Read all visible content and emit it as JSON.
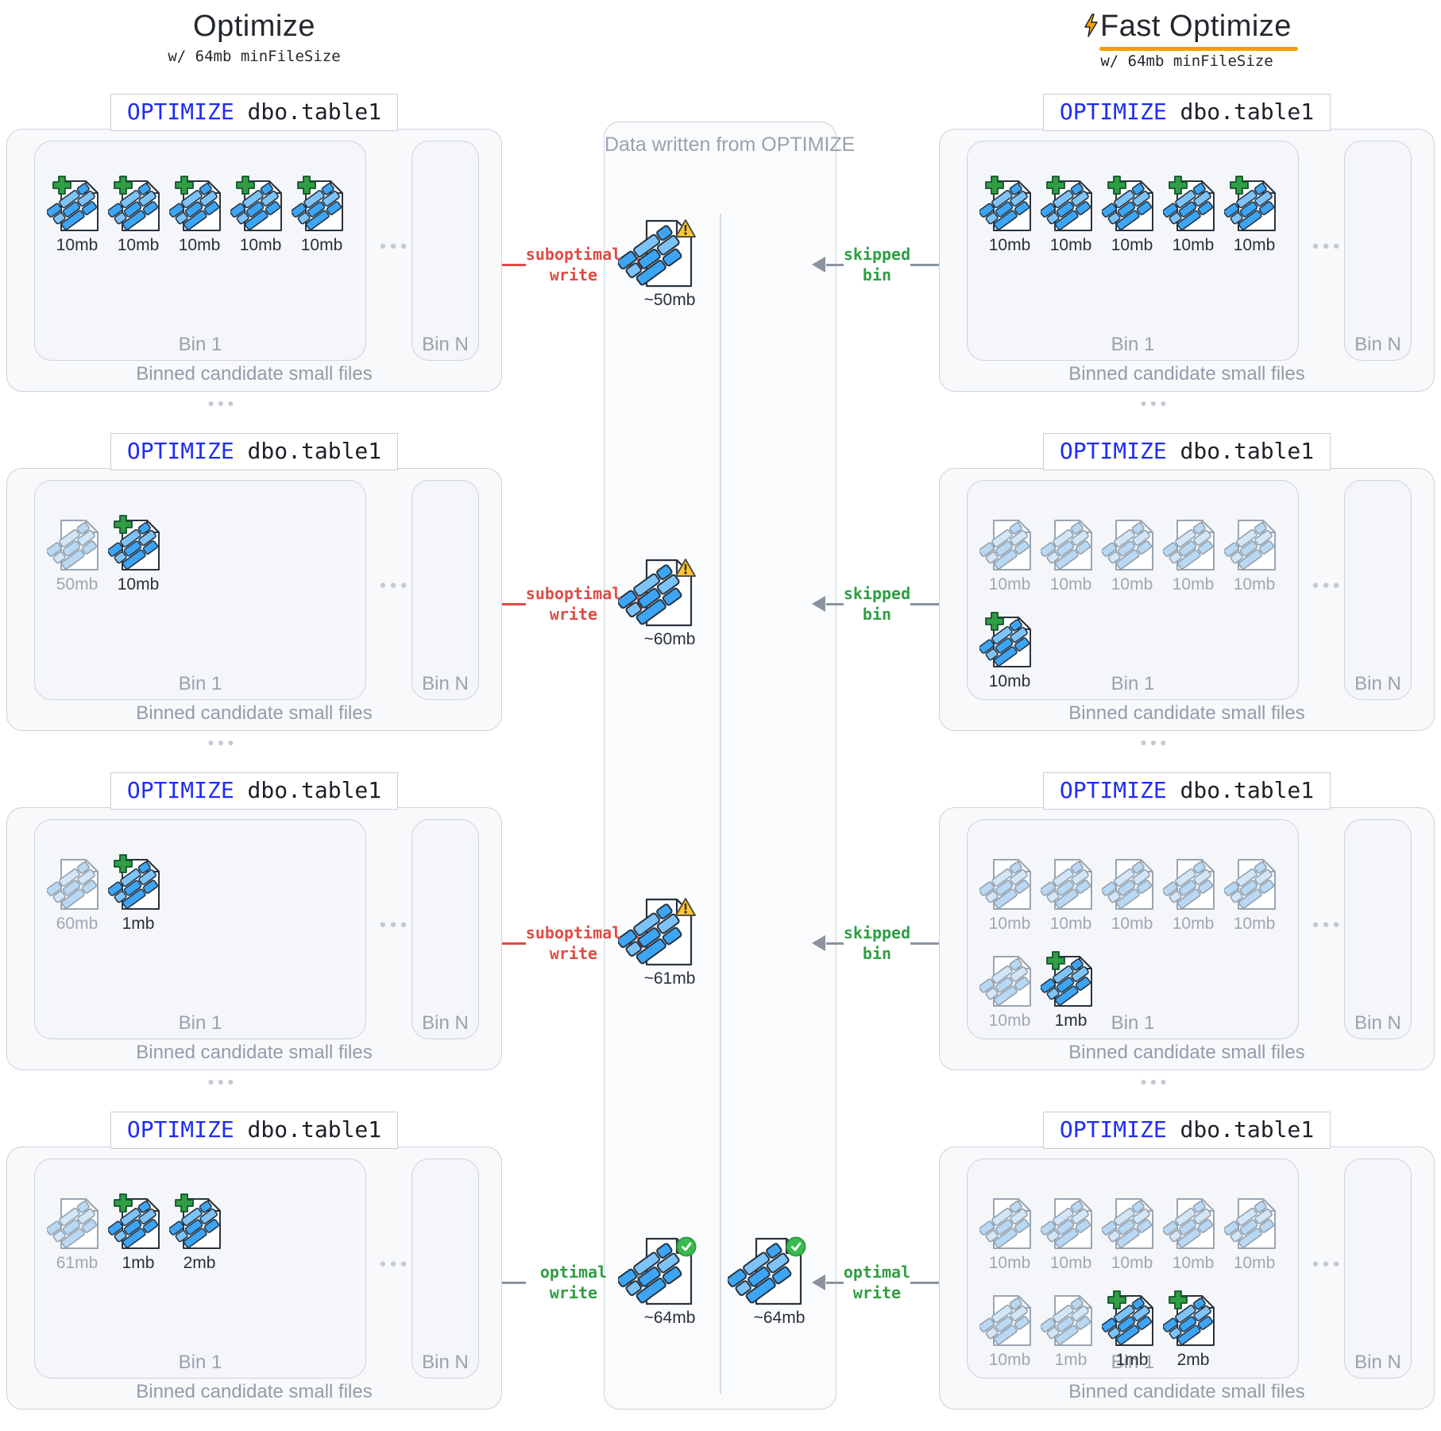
{
  "left_header": {
    "title": "Optimize",
    "subtitle": "w/ 64mb minFileSize"
  },
  "right_header": {
    "title": "Fast Optimize",
    "subtitle": "w/ 64mb minFileSize",
    "bolt_icon": "lightning"
  },
  "center_strip": {
    "title": "Data written from OPTIMIZE"
  },
  "panel_common": {
    "command_keyword": "OPTIMIZE",
    "command_table": " dbo.table1",
    "bin1_label": "Bin 1",
    "binN_label": "Bin N",
    "caption": "Binned candidate small files",
    "bin_dots": "●●●",
    "row_dots": "●●●"
  },
  "colors": {
    "accent_blue": "#1f2df0",
    "flow_red": "#e04b44",
    "flow_green": "#2f9e44",
    "arrow_grey": "#8a939f",
    "underline_orange": "#f59f00",
    "warning_yellow": "#fdc731",
    "check_green": "#3cb94f",
    "file_blue": "#3da5f4",
    "file_blue_light": "#7ec3f8",
    "file_blue_faded": "#b9d8f4"
  },
  "rows": [
    {
      "left_panel": {
        "files_row1": [
          {
            "size": "10mb",
            "state": "new"
          },
          {
            "size": "10mb",
            "state": "new"
          },
          {
            "size": "10mb",
            "state": "new"
          },
          {
            "size": "10mb",
            "state": "new"
          },
          {
            "size": "10mb",
            "state": "new"
          }
        ],
        "files_row2": []
      },
      "right_panel": {
        "files_row1": [
          {
            "size": "10mb",
            "state": "new"
          },
          {
            "size": "10mb",
            "state": "new"
          },
          {
            "size": "10mb",
            "state": "new"
          },
          {
            "size": "10mb",
            "state": "new"
          },
          {
            "size": "10mb",
            "state": "new"
          }
        ],
        "files_row2": []
      },
      "left_flow": {
        "line1": "suboptimal",
        "line2": "write",
        "style": "red"
      },
      "right_flow": {
        "line1": "skipped",
        "line2": "bin",
        "style": "green"
      },
      "written_left": {
        "label": "~50mb",
        "badge": "warning"
      },
      "written_right": null
    },
    {
      "left_panel": {
        "files_row1": [
          {
            "size": "50mb",
            "state": "old"
          },
          {
            "size": "10mb",
            "state": "new"
          }
        ],
        "files_row2": []
      },
      "right_panel": {
        "files_row1": [
          {
            "size": "10mb",
            "state": "old"
          },
          {
            "size": "10mb",
            "state": "old"
          },
          {
            "size": "10mb",
            "state": "old"
          },
          {
            "size": "10mb",
            "state": "old"
          },
          {
            "size": "10mb",
            "state": "old"
          }
        ],
        "files_row2": [
          {
            "size": "10mb",
            "state": "new"
          }
        ]
      },
      "left_flow": {
        "line1": "suboptimal",
        "line2": "write",
        "style": "red"
      },
      "right_flow": {
        "line1": "skipped",
        "line2": "bin",
        "style": "green"
      },
      "written_left": {
        "label": "~60mb",
        "badge": "warning"
      },
      "written_right": null
    },
    {
      "left_panel": {
        "files_row1": [
          {
            "size": "60mb",
            "state": "old"
          },
          {
            "size": "1mb",
            "state": "new"
          }
        ],
        "files_row2": []
      },
      "right_panel": {
        "files_row1": [
          {
            "size": "10mb",
            "state": "old"
          },
          {
            "size": "10mb",
            "state": "old"
          },
          {
            "size": "10mb",
            "state": "old"
          },
          {
            "size": "10mb",
            "state": "old"
          },
          {
            "size": "10mb",
            "state": "old"
          }
        ],
        "files_row2": [
          {
            "size": "10mb",
            "state": "old"
          },
          {
            "size": "1mb",
            "state": "new"
          }
        ]
      },
      "left_flow": {
        "line1": "suboptimal",
        "line2": "write",
        "style": "red"
      },
      "right_flow": {
        "line1": "skipped",
        "line2": "bin",
        "style": "green"
      },
      "written_left": {
        "label": "~61mb",
        "badge": "warning"
      },
      "written_right": null
    },
    {
      "left_panel": {
        "files_row1": [
          {
            "size": "61mb",
            "state": "old"
          },
          {
            "size": "1mb",
            "state": "new"
          },
          {
            "size": "2mb",
            "state": "new"
          }
        ],
        "files_row2": []
      },
      "right_panel": {
        "files_row1": [
          {
            "size": "10mb",
            "state": "old"
          },
          {
            "size": "10mb",
            "state": "old"
          },
          {
            "size": "10mb",
            "state": "old"
          },
          {
            "size": "10mb",
            "state": "old"
          },
          {
            "size": "10mb",
            "state": "old"
          }
        ],
        "files_row2": [
          {
            "size": "10mb",
            "state": "old"
          },
          {
            "size": "1mb",
            "state": "old"
          },
          {
            "size": "1mb",
            "state": "new"
          },
          {
            "size": "2mb",
            "state": "new"
          }
        ]
      },
      "left_flow": {
        "line1": "optimal",
        "line2": "write",
        "style": "green-arrow"
      },
      "right_flow": {
        "line1": "optimal",
        "line2": "write",
        "style": "green-arrow"
      },
      "written_left": {
        "label": "~64mb",
        "badge": "check"
      },
      "written_right": {
        "label": "~64mb",
        "badge": "check"
      }
    }
  ]
}
